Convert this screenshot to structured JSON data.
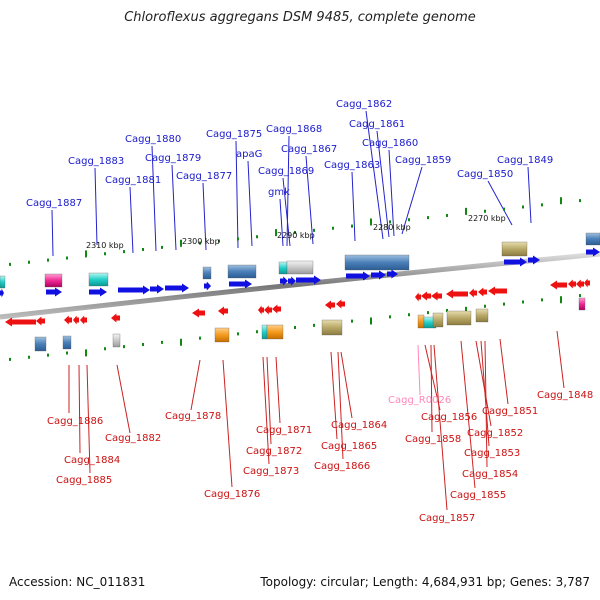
{
  "title": "Chloroflexus aggregans DSM 9485, complete genome",
  "footer": {
    "accession": "Accession: NC_011831",
    "summary": "Topology: circular; Length: 4,684,931 bp; Genes: 3,787"
  },
  "colors": {
    "forward_label": "#1a1acc",
    "reverse_label": "#cc1111",
    "rna_label": "#ff88bb",
    "forward_gene": "#1010e0",
    "reverse_gene": "#ee1111",
    "tick": "#118811",
    "backbone": "#888888"
  },
  "scale_ticks": [
    {
      "label": "2310 kbp"
    },
    {
      "label": "2300 kbp"
    },
    {
      "label": "2290 kbp"
    },
    {
      "label": "2280 kbp"
    },
    {
      "label": "2270 kbp"
    }
  ],
  "top_labels": [
    {
      "text": "Cagg_1887"
    },
    {
      "text": "Cagg_1883"
    },
    {
      "text": "Cagg_1881"
    },
    {
      "text": "Cagg_1880"
    },
    {
      "text": "Cagg_1879"
    },
    {
      "text": "Cagg_1877"
    },
    {
      "text": "Cagg_1875"
    },
    {
      "text": "apaG"
    },
    {
      "text": "Cagg_1868"
    },
    {
      "text": "Cagg_1869"
    },
    {
      "text": "gmk"
    },
    {
      "text": "Cagg_1867"
    },
    {
      "text": "Cagg_1862"
    },
    {
      "text": "Cagg_1861"
    },
    {
      "text": "Cagg_1863"
    },
    {
      "text": "Cagg_1860"
    },
    {
      "text": "Cagg_1859"
    },
    {
      "text": "Cagg_1850"
    },
    {
      "text": "Cagg_1849"
    }
  ],
  "bottom_labels": [
    {
      "text": "Cagg_1886"
    },
    {
      "text": "Cagg_1884"
    },
    {
      "text": "Cagg_1885"
    },
    {
      "text": "Cagg_1882"
    },
    {
      "text": "Cagg_1878"
    },
    {
      "text": "Cagg_1876"
    },
    {
      "text": "Cagg_1871"
    },
    {
      "text": "Cagg_1872"
    },
    {
      "text": "Cagg_1873"
    },
    {
      "text": "Cagg_1864"
    },
    {
      "text": "Cagg_1865"
    },
    {
      "text": "Cagg_1866"
    },
    {
      "text": "Cagg_R0026"
    },
    {
      "text": "Cagg_1856"
    },
    {
      "text": "Cagg_1858"
    },
    {
      "text": "Cagg_1857"
    },
    {
      "text": "Cagg_1851"
    },
    {
      "text": "Cagg_1852"
    },
    {
      "text": "Cagg_1853"
    },
    {
      "text": "Cagg_1854"
    },
    {
      "text": "Cagg_1855"
    },
    {
      "text": "Cagg_1848"
    }
  ]
}
